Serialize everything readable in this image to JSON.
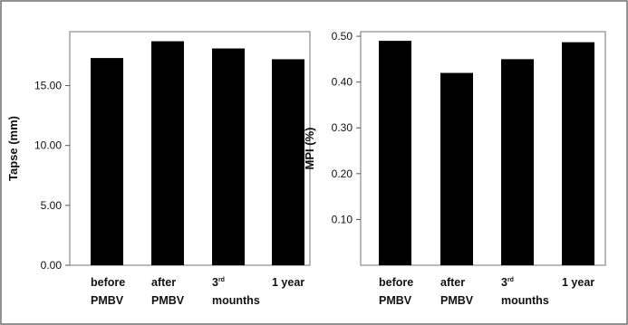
{
  "chart_data": [
    {
      "type": "bar",
      "categories": [
        {
          "line1": "before",
          "line2": "PMBV"
        },
        {
          "line1": "after",
          "line2": "PMBV"
        },
        {
          "line1": "3",
          "sup": "rd",
          "line2": "mounths"
        },
        {
          "line1": "1 year",
          "line2": ""
        }
      ],
      "values": [
        17.3,
        18.7,
        18.1,
        17.2
      ],
      "ylabel": "Tapse (mm)",
      "yticks": [
        "0.00",
        "5.00",
        "10.00",
        "15.00"
      ],
      "ylim": [
        0,
        19.5
      ],
      "grid": false,
      "bar_color": "#000000"
    },
    {
      "type": "bar",
      "categories": [
        {
          "line1": "before",
          "line2": "PMBV"
        },
        {
          "line1": "after",
          "line2": "PMBV"
        },
        {
          "line1": "3",
          "sup": "rd",
          "line2": "mounths"
        },
        {
          "line1": "1 year",
          "line2": ""
        }
      ],
      "values": [
        0.49,
        0.42,
        0.45,
        0.487
      ],
      "ylabel": "MPI (%)",
      "yticks": [
        "0.10",
        "0.20",
        "0.30",
        "0.40",
        "0.50"
      ],
      "ylim": [
        0,
        0.51
      ],
      "grid": false,
      "bar_color": "#000000"
    }
  ]
}
